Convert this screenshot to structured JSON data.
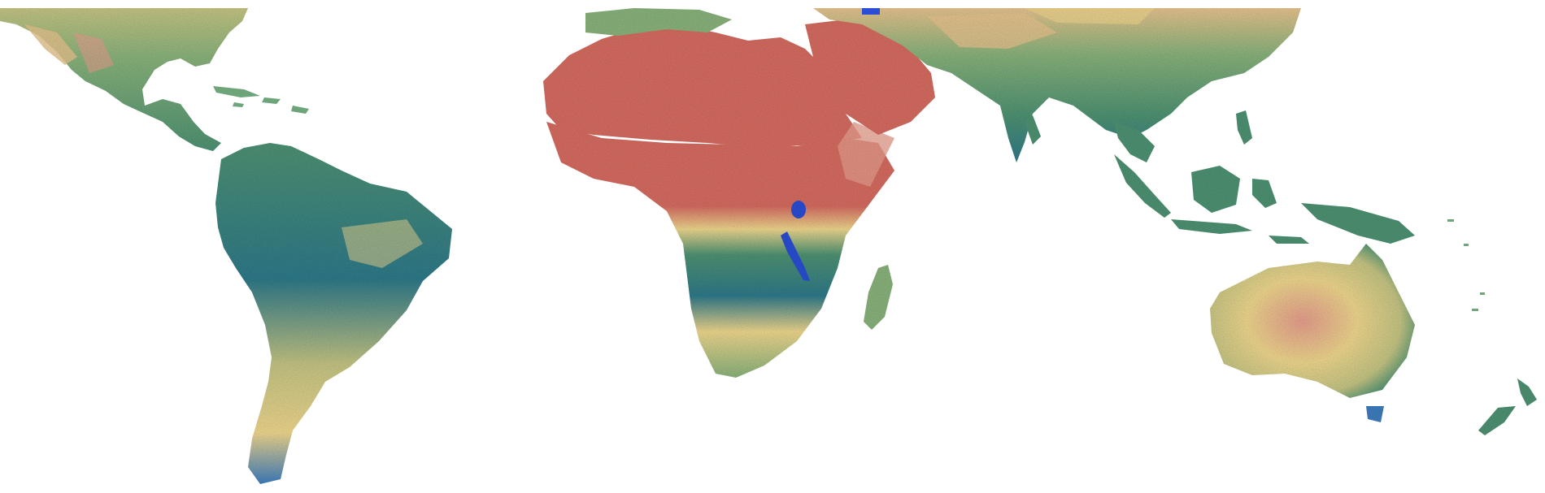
{
  "map": {
    "projection": "equirectangular-clipped",
    "style": "raster-index-map",
    "labels": [],
    "legend": null,
    "palette": {
      "arid": "#d86d62",
      "dry": "#e9a08f",
      "semi_arid": "#f1d98f",
      "transitional": "#c7c785",
      "moderate": "#8bb57d",
      "humid": "#4f9474",
      "very_humid": "#2f7b8b",
      "water": "#2a4fd6",
      "background": "#ffffff"
    },
    "regions": [
      {
        "name": "north-america",
        "class": "transitional"
      },
      {
        "name": "central-america",
        "class": "moderate"
      },
      {
        "name": "south-america",
        "class": "humid"
      },
      {
        "name": "sahara",
        "class": "arid"
      },
      {
        "name": "arabia",
        "class": "arid"
      },
      {
        "name": "sub-saharan-africa",
        "class": "humid"
      },
      {
        "name": "southern-africa",
        "class": "semi_arid"
      },
      {
        "name": "madagascar",
        "class": "moderate"
      },
      {
        "name": "asia",
        "class": "moderate"
      },
      {
        "name": "south-asia",
        "class": "moderate"
      },
      {
        "name": "southeast-asia",
        "class": "humid"
      },
      {
        "name": "maritime-southeast-asia",
        "class": "humid"
      },
      {
        "name": "new-guinea",
        "class": "humid"
      },
      {
        "name": "australia",
        "class": "semi_arid"
      },
      {
        "name": "new-zealand",
        "class": "humid"
      }
    ]
  }
}
